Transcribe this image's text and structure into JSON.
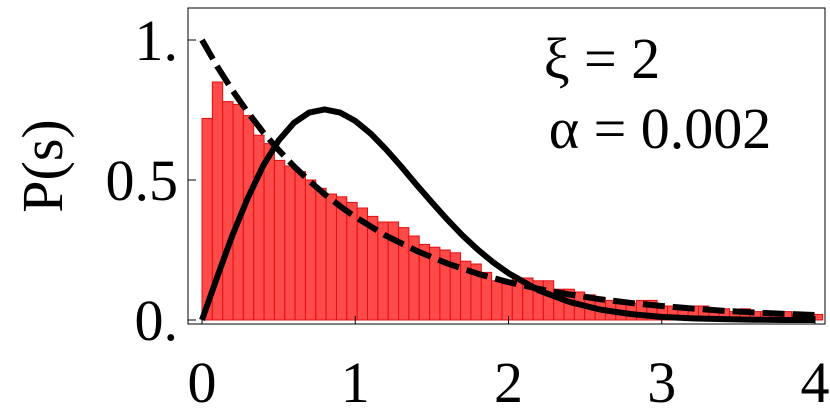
{
  "chart_data": {
    "type": "bar",
    "title": "",
    "xlabel": "",
    "ylabel": "P(s)",
    "xlim": [
      0,
      4.05
    ],
    "ylim": [
      -0.02,
      1.12
    ],
    "grid": false,
    "xticks": [
      0,
      1,
      2,
      3,
      4
    ],
    "xtick_labels": [
      "0",
      "1",
      "2",
      "3",
      "4"
    ],
    "yticks": [
      0,
      0.5,
      1
    ],
    "ytick_labels": [
      "0.",
      "0.5",
      "1."
    ],
    "annotations": [
      {
        "text": "ξ = 2"
      },
      {
        "text": "α = 0.002"
      }
    ],
    "histogram": {
      "bin_width": 0.0675,
      "bin_start": 0,
      "values": [
        0.72,
        0.85,
        0.78,
        0.77,
        0.73,
        0.66,
        0.63,
        0.57,
        0.55,
        0.53,
        0.5,
        0.47,
        0.45,
        0.44,
        0.42,
        0.4,
        0.37,
        0.35,
        0.35,
        0.33,
        0.3,
        0.27,
        0.26,
        0.25,
        0.24,
        0.21,
        0.2,
        0.17,
        0.14,
        0.13,
        0.15,
        0.15,
        0.14,
        0.14,
        0.11,
        0.11,
        0.1,
        0.09,
        0.08,
        0.07,
        0.06,
        0.06,
        0.07,
        0.07,
        0.05,
        0.05,
        0.04,
        0.05,
        0.05,
        0.04,
        0.04,
        0.03,
        0.04,
        0.03,
        0.03,
        0.02,
        0.03,
        0.02,
        0.02,
        0.02
      ],
      "color": "#ff4a4a",
      "edge_color": "#e01010"
    },
    "series": [
      {
        "style": "dashed",
        "x": [
          0,
          0.1,
          0.2,
          0.3,
          0.4,
          0.5,
          0.6,
          0.7,
          0.8,
          0.9,
          1.0,
          1.2,
          1.4,
          1.6,
          1.8,
          2.0,
          2.2,
          2.4,
          2.6,
          2.8,
          3.0,
          3.2,
          3.4,
          3.6,
          3.8,
          4.0
        ],
        "y": [
          1.0,
          0.905,
          0.819,
          0.741,
          0.67,
          0.607,
          0.549,
          0.497,
          0.449,
          0.407,
          0.368,
          0.301,
          0.247,
          0.202,
          0.165,
          0.135,
          0.111,
          0.091,
          0.074,
          0.061,
          0.05,
          0.041,
          0.033,
          0.027,
          0.022,
          0.018
        ],
        "color": "#000000"
      },
      {
        "style": "solid",
        "x": [
          0,
          0.1,
          0.2,
          0.3,
          0.4,
          0.5,
          0.6,
          0.7,
          0.8,
          0.9,
          1.0,
          1.1,
          1.2,
          1.3,
          1.4,
          1.5,
          1.6,
          1.7,
          1.8,
          1.9,
          2.0,
          2.2,
          2.4,
          2.6,
          2.8,
          3.0,
          3.2,
          3.4,
          3.6,
          3.8,
          4.0
        ],
        "y": [
          0,
          0.155,
          0.305,
          0.437,
          0.552,
          0.641,
          0.704,
          0.741,
          0.752,
          0.741,
          0.711,
          0.666,
          0.61,
          0.548,
          0.483,
          0.42,
          0.359,
          0.302,
          0.251,
          0.206,
          0.167,
          0.105,
          0.064,
          0.037,
          0.021,
          0.011,
          0.006,
          0.003,
          0.001,
          0.0,
          0.0
        ],
        "color": "#000000"
      }
    ]
  }
}
